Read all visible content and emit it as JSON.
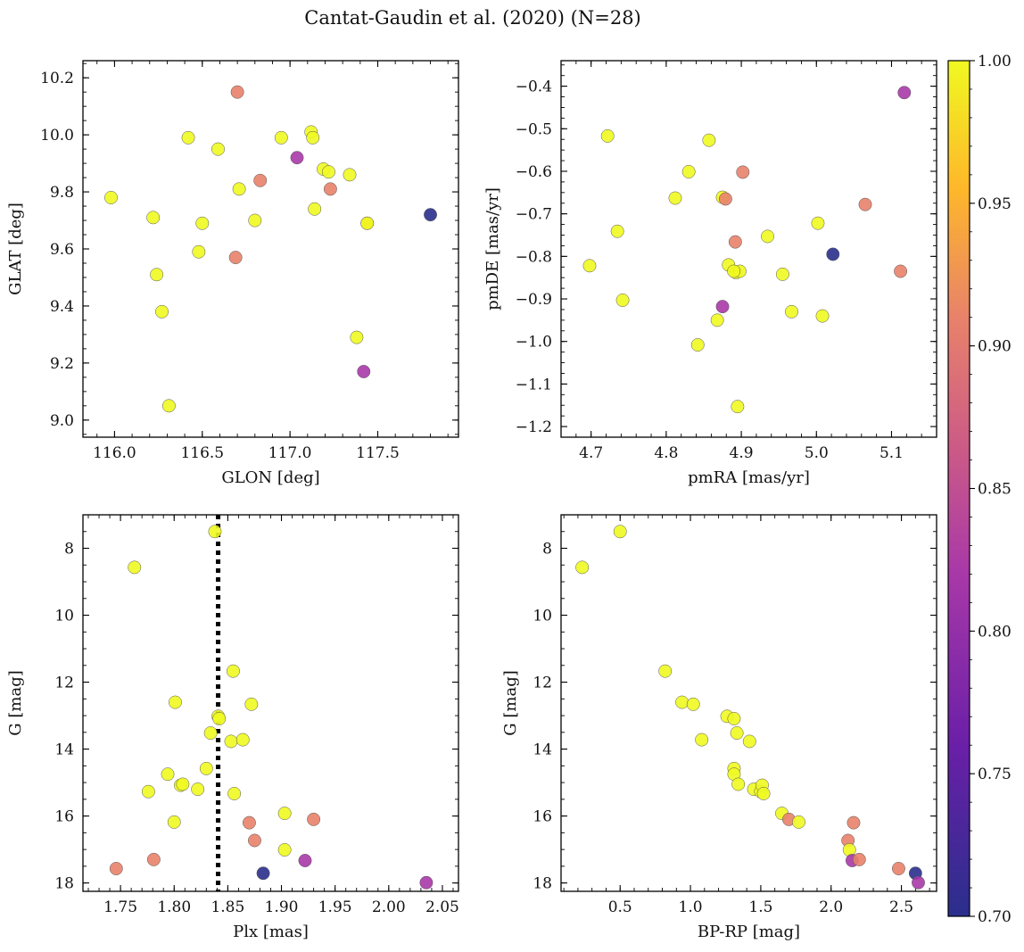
{
  "figure": {
    "title": "Cantat-Gaudin et al. (2020) (N=28)"
  },
  "colorbar": {
    "range": [
      0.7,
      1.0
    ],
    "ticks": [
      "1.00",
      "0.95",
      "0.90",
      "0.85",
      "0.80",
      "0.75",
      "0.70"
    ],
    "colormap": "plasma"
  },
  "colors": {
    "c100": "#f0f921",
    "c093": "#feb72a",
    "c089": "#e8826a",
    "c080": "#a838a8",
    "c070": "#2a2f8c"
  },
  "chart_data": [
    {
      "type": "scatter",
      "title": "",
      "xlabel": "GLON [deg]",
      "ylabel": "GLAT [deg]",
      "xlim": [
        115.82,
        117.96
      ],
      "ylim": [
        8.94,
        10.26
      ],
      "xticks": [
        "116.0",
        "116.5",
        "117.0",
        "117.5"
      ],
      "yticks": [
        "9.0",
        "9.2",
        "9.4",
        "9.6",
        "9.8",
        "10.0",
        "10.2"
      ],
      "grid": false,
      "x": [
        115.98,
        116.22,
        116.24,
        116.27,
        116.31,
        116.42,
        116.48,
        116.5,
        116.59,
        116.69,
        116.7,
        116.71,
        116.8,
        116.83,
        116.95,
        117.04,
        117.12,
        117.13,
        117.14,
        117.19,
        117.22,
        117.23,
        117.34,
        117.38,
        117.42,
        117.44,
        117.44,
        117.8
      ],
      "y": [
        9.78,
        9.71,
        9.51,
        9.38,
        9.05,
        9.99,
        9.59,
        9.69,
        9.95,
        9.57,
        10.15,
        9.81,
        9.7,
        9.84,
        9.99,
        9.92,
        10.01,
        9.99,
        9.74,
        9.88,
        9.87,
        9.81,
        9.86,
        9.29,
        9.17,
        9.69,
        9.69,
        9.72
      ],
      "color": [
        1.0,
        1.0,
        1.0,
        1.0,
        1.0,
        1.0,
        1.0,
        1.0,
        1.0,
        0.89,
        0.89,
        1.0,
        1.0,
        0.89,
        1.0,
        0.8,
        1.0,
        1.0,
        1.0,
        1.0,
        1.0,
        0.89,
        1.0,
        1.0,
        0.8,
        0.93,
        1.0,
        0.7
      ]
    },
    {
      "type": "scatter",
      "title": "",
      "xlabel": "pmRA [mas/yr]",
      "ylabel": "pmDE [mas/yr]",
      "xlim": [
        4.66,
        5.16
      ],
      "ylim": [
        -1.225,
        -0.34
      ],
      "xticks": [
        "4.7",
        "4.8",
        "4.9",
        "5.0",
        "5.1"
      ],
      "yticks": [
        "−0.4",
        "−0.5",
        "−0.6",
        "−0.7",
        "−0.8",
        "−0.9",
        "−1.0",
        "−1.1",
        "−1.2"
      ],
      "grid": false,
      "x": [
        4.698,
        4.722,
        4.735,
        4.742,
        4.812,
        4.83,
        4.842,
        4.857,
        4.868,
        4.875,
        4.875,
        4.879,
        4.883,
        4.892,
        4.893,
        4.895,
        4.898,
        4.902,
        4.935,
        4.955,
        4.967,
        5.002,
        5.008,
        5.022,
        5.065,
        5.112,
        5.117,
        4.89
      ],
      "y": [
        -0.822,
        -0.517,
        -0.741,
        -0.903,
        -0.663,
        -0.601,
        -1.008,
        -0.527,
        -0.95,
        -0.661,
        -0.918,
        -0.665,
        -0.82,
        -0.766,
        -0.838,
        -1.153,
        -0.835,
        -0.602,
        -0.753,
        -0.842,
        -0.93,
        -0.722,
        -0.94,
        -0.795,
        -0.678,
        -0.835,
        -0.415,
        -0.835
      ],
      "color": [
        1.0,
        1.0,
        1.0,
        1.0,
        1.0,
        1.0,
        1.0,
        1.0,
        1.0,
        1.0,
        0.8,
        0.89,
        1.0,
        0.89,
        1.0,
        1.0,
        1.0,
        0.89,
        1.0,
        1.0,
        1.0,
        1.0,
        1.0,
        0.7,
        0.89,
        0.89,
        0.8,
        1.0
      ]
    },
    {
      "type": "scatter",
      "title": "",
      "xlabel": "Plx [mas]",
      "ylabel": "G [mag]",
      "xlim": [
        1.715,
        2.065
      ],
      "ylim": [
        18.25,
        7.0
      ],
      "y_inverted": true,
      "xticks": [
        "1.75",
        "1.80",
        "1.85",
        "1.90",
        "1.95",
        "2.00",
        "2.05"
      ],
      "yticks": [
        "8",
        "10",
        "12",
        "14",
        "16",
        "18"
      ],
      "vline": {
        "x": 1.841,
        "style": "dotted",
        "color": "#000000"
      },
      "grid": false,
      "x": [
        1.746,
        1.763,
        1.776,
        1.781,
        1.794,
        1.8,
        1.801,
        1.806,
        1.808,
        1.822,
        1.83,
        1.834,
        1.838,
        1.841,
        1.842,
        1.853,
        1.855,
        1.856,
        1.864,
        1.87,
        1.872,
        1.875,
        1.883,
        1.903,
        1.903,
        1.93,
        1.922,
        2.035
      ],
      "y": [
        17.57,
        8.57,
        15.27,
        17.3,
        14.75,
        16.18,
        12.6,
        15.08,
        15.05,
        15.2,
        14.58,
        13.52,
        7.5,
        13.02,
        13.09,
        13.77,
        11.67,
        15.33,
        13.72,
        16.2,
        12.66,
        16.73,
        17.71,
        15.92,
        17.01,
        16.1,
        17.33,
        17.99
      ],
      "color": [
        0.89,
        1.0,
        1.0,
        0.89,
        1.0,
        1.0,
        1.0,
        1.0,
        1.0,
        1.0,
        1.0,
        1.0,
        1.0,
        1.0,
        1.0,
        1.0,
        1.0,
        1.0,
        1.0,
        0.89,
        1.0,
        0.89,
        0.7,
        1.0,
        1.0,
        0.89,
        0.8,
        0.8
      ]
    },
    {
      "type": "scatter",
      "title": "",
      "xlabel": "BP-RP [mag]",
      "ylabel": "G [mag]",
      "xlim": [
        0.08,
        2.75
      ],
      "ylim": [
        18.25,
        7.0
      ],
      "y_inverted": true,
      "xticks": [
        "0.5",
        "1.0",
        "1.5",
        "2.0",
        "2.5"
      ],
      "yticks": [
        "8",
        "10",
        "12",
        "14",
        "16",
        "18"
      ],
      "grid": false,
      "x": [
        0.23,
        0.5,
        0.82,
        0.94,
        1.02,
        1.08,
        1.26,
        1.31,
        1.33,
        1.42,
        1.31,
        1.31,
        1.34,
        1.45,
        1.5,
        1.51,
        1.52,
        1.65,
        1.7,
        1.77,
        2.12,
        2.13,
        2.15,
        2.16,
        2.2,
        2.48,
        2.6,
        2.62
      ],
      "y": [
        8.57,
        7.5,
        11.67,
        12.6,
        12.66,
        13.72,
        13.02,
        13.09,
        13.52,
        13.77,
        14.58,
        14.75,
        15.05,
        15.2,
        15.27,
        15.08,
        15.33,
        15.92,
        16.1,
        16.18,
        16.73,
        17.01,
        17.33,
        16.2,
        17.3,
        17.57,
        17.71,
        17.99
      ],
      "color": [
        1.0,
        1.0,
        1.0,
        1.0,
        1.0,
        1.0,
        1.0,
        1.0,
        1.0,
        1.0,
        1.0,
        1.0,
        1.0,
        1.0,
        1.0,
        1.0,
        1.0,
        1.0,
        0.89,
        1.0,
        0.89,
        1.0,
        0.8,
        0.89,
        0.89,
        0.89,
        0.7,
        0.8
      ]
    }
  ]
}
